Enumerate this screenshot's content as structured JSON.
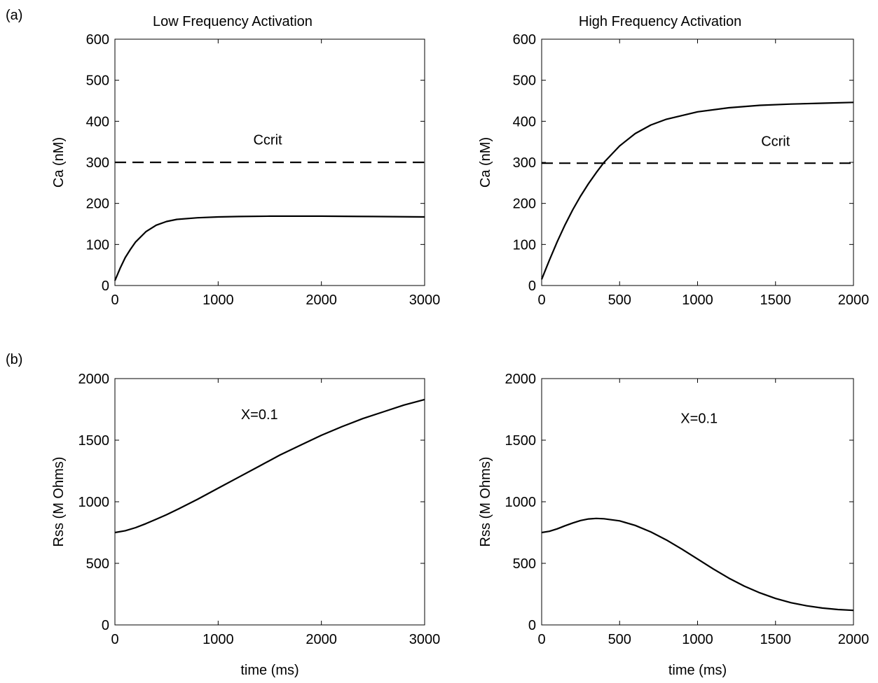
{
  "figure": {
    "panel_labels": [
      "(a)",
      "(b)"
    ]
  },
  "chart_data": [
    {
      "type": "line",
      "panel": "(a)",
      "title": "Low Frequency Activation",
      "xlabel": "",
      "ylabel": "Ca (nM)",
      "xlim": [
        0,
        3000
      ],
      "ylim": [
        0,
        600
      ],
      "xticks": [
        0,
        1000,
        2000,
        3000
      ],
      "yticks": [
        0,
        100,
        200,
        300,
        400,
        500,
        600
      ],
      "grid": false,
      "annotations": [
        {
          "text": "Ccrit",
          "x": 1480,
          "y": 355
        }
      ],
      "series": [
        {
          "style": "solid",
          "x": [
            0,
            50,
            100,
            150,
            200,
            300,
            400,
            500,
            600,
            800,
            1000,
            1200,
            1500,
            1800,
            2000,
            2500,
            3000
          ],
          "y": [
            12,
            42,
            68,
            88,
            106,
            131,
            147,
            156,
            161,
            165,
            167,
            168,
            169,
            169,
            169,
            168,
            167
          ]
        },
        {
          "style": "dashed",
          "x": [
            0,
            3000
          ],
          "y": [
            300,
            300
          ]
        }
      ]
    },
    {
      "type": "line",
      "panel": "",
      "title": "High Frequency Activation",
      "xlabel": "",
      "ylabel": "Ca (nM)",
      "xlim": [
        0,
        2000
      ],
      "ylim": [
        0,
        600
      ],
      "xticks": [
        0,
        500,
        1000,
        1500,
        2000
      ],
      "yticks": [
        0,
        100,
        200,
        300,
        400,
        500,
        600
      ],
      "grid": false,
      "annotations": [
        {
          "text": "Ccrit",
          "x": 1500,
          "y": 352
        }
      ],
      "series": [
        {
          "style": "solid",
          "x": [
            0,
            50,
            100,
            150,
            200,
            250,
            300,
            350,
            400,
            500,
            600,
            700,
            800,
            1000,
            1200,
            1400,
            1600,
            1800,
            2000
          ],
          "y": [
            15,
            62,
            107,
            148,
            185,
            218,
            248,
            275,
            300,
            340,
            370,
            391,
            405,
            423,
            433,
            439,
            442,
            444,
            446
          ]
        },
        {
          "style": "dashed",
          "x": [
            0,
            2000
          ],
          "y": [
            298,
            298
          ]
        }
      ]
    },
    {
      "type": "line",
      "panel": "(b)",
      "title": "",
      "xlabel": "time (ms)",
      "ylabel": "Rss (M Ohms)",
      "xlim": [
        0,
        3000
      ],
      "ylim": [
        0,
        2000
      ],
      "xticks": [
        0,
        1000,
        2000,
        3000
      ],
      "yticks": [
        0,
        500,
        1000,
        1500,
        2000
      ],
      "grid": false,
      "annotations": [
        {
          "text": "X=0.1",
          "x": 1400,
          "y": 1710
        }
      ],
      "series": [
        {
          "style": "solid",
          "x": [
            0,
            100,
            200,
            300,
            400,
            500,
            600,
            800,
            1000,
            1200,
            1400,
            1600,
            1800,
            2000,
            2200,
            2400,
            2600,
            2800,
            3000
          ],
          "y": [
            750,
            765,
            790,
            822,
            858,
            895,
            935,
            1020,
            1110,
            1200,
            1290,
            1380,
            1460,
            1540,
            1610,
            1675,
            1730,
            1785,
            1830
          ]
        }
      ]
    },
    {
      "type": "line",
      "panel": "",
      "title": "",
      "xlabel": "time (ms)",
      "ylabel": "Rss (M Ohms)",
      "xlim": [
        0,
        2000
      ],
      "ylim": [
        0,
        2000
      ],
      "xticks": [
        0,
        500,
        1000,
        1500,
        2000
      ],
      "yticks": [
        0,
        500,
        1000,
        1500,
        2000
      ],
      "grid": false,
      "annotations": [
        {
          "text": "X=0.1",
          "x": 1010,
          "y": 1680
        }
      ],
      "series": [
        {
          "style": "solid",
          "x": [
            0,
            50,
            100,
            150,
            200,
            250,
            300,
            350,
            400,
            500,
            600,
            700,
            800,
            900,
            1000,
            1100,
            1200,
            1300,
            1400,
            1500,
            1600,
            1700,
            1800,
            1900,
            2000
          ],
          "y": [
            750,
            760,
            780,
            805,
            828,
            848,
            860,
            865,
            862,
            845,
            808,
            755,
            690,
            615,
            535,
            455,
            380,
            315,
            260,
            215,
            180,
            155,
            137,
            125,
            118
          ]
        }
      ]
    }
  ]
}
